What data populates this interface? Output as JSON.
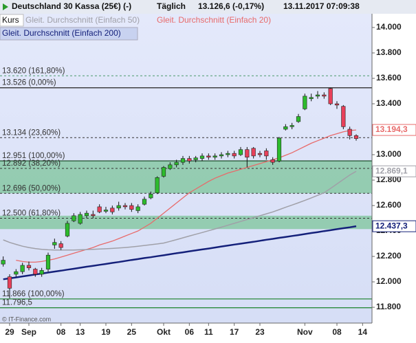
{
  "chart_data": {
    "type": "candlestick",
    "title": "Deutschland 30 Kassa (25€) (-)",
    "interval": "Täglich",
    "quote": "13.126,6 (-0,17%)",
    "timestamp": "13.11.2017 07:09:38",
    "source": "© IT-Finance.com",
    "legend": "top-left",
    "categories": [
      null,
      "29",
      null,
      null,
      "Sep",
      null,
      null,
      null,
      null,
      "08",
      null,
      null,
      "13",
      null,
      null,
      null,
      "19",
      null,
      null,
      null,
      "25",
      null,
      null,
      null,
      null,
      "Okt",
      null,
      null,
      null,
      "06",
      null,
      null,
      "11",
      null,
      null,
      null,
      "17",
      null,
      null,
      null,
      "23",
      null,
      null,
      null,
      null,
      null,
      null,
      "Nov",
      null,
      null,
      null,
      null,
      "08",
      null,
      null,
      null,
      "14"
    ],
    "candles": {
      "name": "Kurs",
      "up_color": "#2dbb2d",
      "down_color": "#e8405a",
      "open": [
        12140,
        12040,
        12060,
        12080,
        12130,
        12100,
        12060,
        12100,
        12290,
        12300,
        12360,
        12480,
        12460,
        12520,
        12530,
        12590,
        12555,
        12580,
        12580,
        12600,
        12600,
        12560,
        12610,
        12660,
        12700,
        12830,
        12890,
        12920,
        12940,
        12970,
        12960,
        12970,
        12990,
        12980,
        12990,
        13000,
        13010,
        13000,
        13040,
        13050,
        13010,
        13030,
        12960,
        12950,
        13200,
        13220,
        13260,
        13360,
        13440,
        13460,
        13470,
        13520,
        13400,
        13380,
        13200,
        13150,
        null
      ],
      "close": [
        12170,
        11950,
        12080,
        12130,
        12110,
        12060,
        12090,
        12210,
        12310,
        12270,
        12460,
        12520,
        12530,
        12540,
        12520,
        12550,
        12565,
        12550,
        12600,
        12590,
        12570,
        12590,
        12650,
        12690,
        12820,
        12900,
        12920,
        12940,
        12970,
        12950,
        12975,
        12990,
        12980,
        12990,
        13000,
        13010,
        12990,
        13040,
        12980,
        12990,
        13000,
        12990,
        12940,
        13130,
        13220,
        13230,
        13300,
        13460,
        13450,
        13470,
        13460,
        13400,
        13390,
        13220,
        13150,
        13126.6,
        null
      ],
      "high": [
        12200,
        12060,
        12100,
        12150,
        12160,
        12110,
        12110,
        12230,
        12340,
        12320,
        12480,
        12540,
        12550,
        12560,
        12560,
        12610,
        12590,
        12600,
        12630,
        12620,
        12620,
        12610,
        12670,
        12710,
        12830,
        12910,
        12940,
        12960,
        12990,
        12990,
        12990,
        13010,
        13010,
        13010,
        13020,
        13030,
        13030,
        13060,
        13060,
        13060,
        13030,
        13050,
        12980,
        13140,
        13240,
        13250,
        13320,
        13480,
        13480,
        13500,
        13490,
        13526,
        13420,
        13390,
        13220,
        13160,
        null
      ],
      "low": [
        12120,
        11870,
        12040,
        12060,
        12090,
        12040,
        12040,
        12080,
        12260,
        12250,
        12350,
        12470,
        12450,
        12500,
        12500,
        12540,
        12540,
        12530,
        12560,
        12570,
        12550,
        12540,
        12600,
        12650,
        12690,
        12820,
        12880,
        12900,
        12920,
        12930,
        12940,
        12950,
        12960,
        12960,
        12970,
        12980,
        12970,
        12990,
        12900,
        12970,
        12980,
        12960,
        12920,
        12940,
        13190,
        13200,
        13250,
        13350,
        13420,
        13440,
        13440,
        13390,
        13360,
        13200,
        13120,
        13110,
        null
      ]
    },
    "series": [
      {
        "name": "Gleit. Durchschnitt (Einfach 20)",
        "color": "#e86a6a",
        "width": 1.3,
        "last_label": "13.194,3",
        "values": [
          null,
          null,
          12170,
          12160,
          12155,
          12155,
          12160,
          12170,
          12180,
          12195,
          12210,
          12225,
          12240,
          12255,
          12270,
          12290,
          12305,
          12320,
          12340,
          12360,
          12380,
          12400,
          12430,
          12460,
          12500,
          12540,
          12580,
          12620,
          12660,
          12700,
          12730,
          12760,
          12790,
          12815,
          12835,
          12855,
          12870,
          12885,
          12900,
          12915,
          12930,
          12945,
          12960,
          12975,
          12995,
          13015,
          13040,
          13065,
          13090,
          13110,
          13130,
          13150,
          13165,
          13180,
          13190,
          13194.3,
          null
        ]
      },
      {
        "name": "Gleit. Durchschnitt (Einfach 50)",
        "color": "#a0a0a8",
        "width": 1.5,
        "last_label": "12.869,1",
        "values": [
          12330,
          12310,
          12295,
          12280,
          12270,
          12262,
          12256,
          12252,
          12250,
          12250,
          12250,
          12250,
          12252,
          12254,
          12256,
          12258,
          12260,
          12263,
          12266,
          12270,
          12275,
          12280,
          12286,
          12292,
          12298,
          12305,
          12318,
          12332,
          12346,
          12360,
          12374,
          12388,
          12402,
          12416,
          12430,
          12445,
          12460,
          12475,
          12490,
          12505,
          12520,
          12535,
          12550,
          12568,
          12586,
          12604,
          12622,
          12640,
          12660,
          12680,
          12700,
          12735,
          12770,
          12805,
          12840,
          12869.1,
          null
        ]
      },
      {
        "name": "Gleit. Durchschnitt (Einfach 200)",
        "color": "#14207a",
        "width": 2.5,
        "last_label": "12.437,3",
        "values": [
          12020,
          12028,
          12035,
          12043,
          12050,
          12058,
          12065,
          12073,
          12081,
          12088,
          12096,
          12103,
          12111,
          12119,
          12126,
          12134,
          12141,
          12149,
          12156,
          12164,
          12172,
          12179,
          12187,
          12194,
          12202,
          12209,
          12217,
          12225,
          12232,
          12240,
          12247,
          12255,
          12262,
          12270,
          12278,
          12285,
          12293,
          12300,
          12308,
          12315,
          12323,
          12331,
          12338,
          12346,
          12353,
          12361,
          12368,
          12376,
          12384,
          12391,
          12399,
          12406,
          12414,
          12422,
          12429,
          12437.3,
          null
        ]
      }
    ],
    "levels": [
      {
        "value": 13620,
        "label": "13.620 (161,80%)",
        "color": "#4a9a6a",
        "style": "dashed"
      },
      {
        "value": 13526,
        "label": "13.526 (0,00%)",
        "color": "#333333",
        "style": "solid"
      },
      {
        "value": 13134,
        "label": "13.134 (23,60%)",
        "color": "#333333",
        "style": "dashed"
      },
      {
        "value": 12951,
        "label": "12.951 (100,00%)",
        "color": "#2a5a3a",
        "style": "solid"
      },
      {
        "value": 12892,
        "label": "12.892 (38,20%)",
        "color": "#333333",
        "style": "dashed"
      },
      {
        "value": 12696,
        "label": "12.696 (50,00%)",
        "color": "#333333",
        "style": "dashed"
      },
      {
        "value": 12500,
        "label": "12.500 (61,80%)",
        "color": "#333333",
        "style": "dashed"
      },
      {
        "value": 11866,
        "label": "11.866 (100,00%)",
        "color": "#2a8a3a",
        "style": "solid"
      },
      {
        "value": 11796.5,
        "label": "11.796,5",
        "color": "#2a8a3a",
        "style": "solid"
      }
    ],
    "zones": [
      {
        "from": 12951,
        "to": 12696,
        "color": "#7cc49a"
      },
      {
        "from": 12520,
        "to": 12415,
        "color": "#7cc49a"
      }
    ],
    "ylim": [
      11676,
      14108
    ],
    "yticks": [
      {
        "value": 11800,
        "label": "11.800"
      },
      {
        "value": 12000,
        "label": "12.000"
      },
      {
        "value": 12200,
        "label": "12.200"
      },
      {
        "value": 12400,
        "label": "12.400"
      },
      {
        "value": 12600,
        "label": "12.600"
      },
      {
        "value": 12800,
        "label": "12.800"
      },
      {
        "value": 13000,
        "label": "13.000"
      },
      {
        "value": 13200,
        "label": "13.200"
      },
      {
        "value": 13400,
        "label": "13.400"
      },
      {
        "value": 13600,
        "label": "13.600"
      },
      {
        "value": 13800,
        "label": "13.800"
      },
      {
        "value": 14000,
        "label": "14.000"
      }
    ]
  }
}
